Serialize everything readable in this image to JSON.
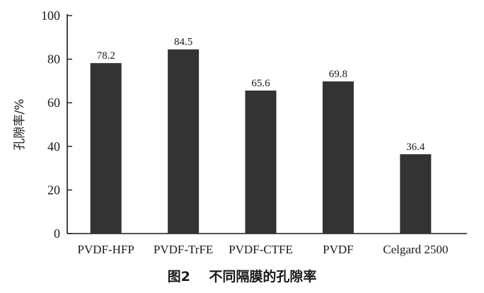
{
  "caption": "图2    不同隔膜的孔隙率",
  "colors": {
    "bar": "#333333",
    "axis": "#1a1a1a"
  },
  "chart_data": {
    "type": "bar",
    "title": "",
    "xlabel": "",
    "ylabel": "孔隙率/%",
    "categories": [
      "PVDF-HFP",
      "PVDF-TrFE",
      "PVDF-CTFE",
      "PVDF",
      "Celgard 2500"
    ],
    "values": [
      78.2,
      84.5,
      65.6,
      69.8,
      36.4
    ],
    "value_labels": [
      "78.2",
      "84.5",
      "65.6",
      "69.8",
      "36.4"
    ],
    "ylim": [
      0,
      100
    ],
    "yticks": [
      0,
      20,
      40,
      60,
      80,
      100
    ],
    "grid": false,
    "legend": "none"
  }
}
